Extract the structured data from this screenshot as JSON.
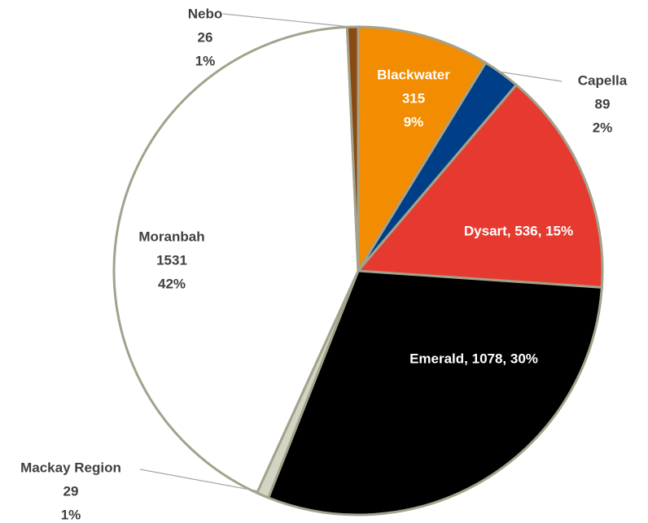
{
  "chart_data": {
    "type": "pie",
    "categories": [
      "Blackwater",
      "Capella",
      "Dysart",
      "Emerald",
      "Mackay Region",
      "Moranbah",
      "Nebo"
    ],
    "values": [
      315,
      89,
      536,
      1078,
      29,
      1531,
      26
    ],
    "value_labels": [
      [
        "Blackwater",
        "315",
        "9%"
      ],
      [
        "Capella",
        "89",
        "2%"
      ],
      [
        "Dysart, 536, 15%"
      ],
      [
        "Emerald, 1078, 30%"
      ],
      [
        "Mackay Region",
        "29",
        "1%"
      ],
      [
        "Moranbah",
        "1531",
        "42%"
      ],
      [
        "Nebo",
        "26",
        "1%"
      ]
    ],
    "colors": [
      "#f28c00",
      "#003f87",
      "#e63a30",
      "#000000",
      "#d4d4c4",
      "#ffffff",
      "#8b4a12"
    ]
  }
}
